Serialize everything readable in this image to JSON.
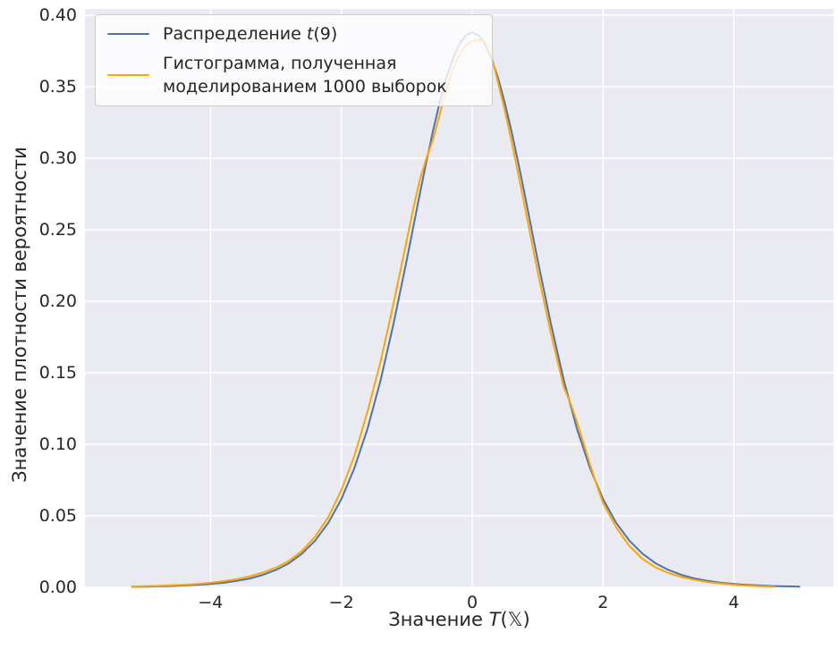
{
  "figure": {
    "background": "#ffffff",
    "plot_background": "#eaeaf2",
    "grid_color": "#ffffff",
    "text_color": "#262626",
    "legend_background": "rgba(255,255,255,0.8)",
    "legend_border": "#cccccc"
  },
  "chart_data": {
    "type": "line",
    "title": "",
    "xlabel_text": "Значение T(𝕏)",
    "xlabel_parts": {
      "prefix": "Значение ",
      "italic": "T",
      "suffix": "(𝕏)"
    },
    "ylabel": "Значение плотности вероятности",
    "x_ticks": [
      -4,
      -2,
      0,
      2,
      4
    ],
    "x_tick_labels": [
      "−4",
      "−2",
      "0",
      "2",
      "4"
    ],
    "y_ticks": [
      0,
      0.05,
      0.1,
      0.15,
      0.2,
      0.25,
      0.3,
      0.35,
      0.4
    ],
    "y_tick_labels": [
      "0.00",
      "0.05",
      "0.10",
      "0.15",
      "0.20",
      "0.25",
      "0.30",
      "0.35",
      "0.40"
    ],
    "xlim": [
      -5.93,
      5.53
    ],
    "ylim": [
      0,
      0.405
    ],
    "grid": true,
    "legend_position": "upper left",
    "series": [
      {
        "name": "Распределение t(9)",
        "label_parts": {
          "prefix": "Распределение ",
          "italic": "t",
          "suffix": "(9)"
        },
        "color": "#4c72b0",
        "peak": 0.388,
        "points": [
          [
            -5.2,
            0.0004
          ],
          [
            -5.0,
            0.0005
          ],
          [
            -4.8,
            0.0007
          ],
          [
            -4.6,
            0.0009
          ],
          [
            -4.4,
            0.0013
          ],
          [
            -4.2,
            0.0017
          ],
          [
            -4.0,
            0.0024
          ],
          [
            -3.8,
            0.0032
          ],
          [
            -3.6,
            0.0045
          ],
          [
            -3.4,
            0.0062
          ],
          [
            -3.2,
            0.0087
          ],
          [
            -3.0,
            0.0121
          ],
          [
            -2.8,
            0.0169
          ],
          [
            -2.6,
            0.0236
          ],
          [
            -2.4,
            0.0327
          ],
          [
            -2.2,
            0.0451
          ],
          [
            -2.0,
            0.0617
          ],
          [
            -1.8,
            0.0834
          ],
          [
            -1.6,
            0.111
          ],
          [
            -1.4,
            0.1448
          ],
          [
            -1.2,
            0.1848
          ],
          [
            -1.0,
            0.2291
          ],
          [
            -0.9,
            0.2522
          ],
          [
            -0.8,
            0.2753
          ],
          [
            -0.7,
            0.2977
          ],
          [
            -0.6,
            0.319
          ],
          [
            -0.5,
            0.3383
          ],
          [
            -0.4,
            0.3553
          ],
          [
            -0.3,
            0.3692
          ],
          [
            -0.2,
            0.3795
          ],
          [
            -0.1,
            0.3859
          ],
          [
            0.0,
            0.388
          ],
          [
            0.1,
            0.3859
          ],
          [
            0.2,
            0.3795
          ],
          [
            0.3,
            0.3692
          ],
          [
            0.4,
            0.3553
          ],
          [
            0.5,
            0.3383
          ],
          [
            0.6,
            0.319
          ],
          [
            0.7,
            0.2977
          ],
          [
            0.8,
            0.2753
          ],
          [
            0.9,
            0.2522
          ],
          [
            1.0,
            0.2291
          ],
          [
            1.2,
            0.1848
          ],
          [
            1.4,
            0.1448
          ],
          [
            1.6,
            0.111
          ],
          [
            1.8,
            0.0834
          ],
          [
            2.0,
            0.0617
          ],
          [
            2.2,
            0.0451
          ],
          [
            2.4,
            0.0327
          ],
          [
            2.6,
            0.0236
          ],
          [
            2.8,
            0.0169
          ],
          [
            3.0,
            0.0121
          ],
          [
            3.2,
            0.0087
          ],
          [
            3.4,
            0.0062
          ],
          [
            3.6,
            0.0045
          ],
          [
            3.8,
            0.0032
          ],
          [
            4.0,
            0.0024
          ],
          [
            4.2,
            0.0017
          ],
          [
            4.4,
            0.0013
          ],
          [
            4.6,
            0.0009
          ],
          [
            4.8,
            0.0007
          ],
          [
            5.0,
            0.0005
          ]
        ]
      },
      {
        "name": "Гистограмма, полученная моделированием 1000 выборок",
        "label_lines": [
          "Гистограмма, полученная",
          "моделированием 1000 выборок"
        ],
        "color": "#ffa500",
        "peak": 0.3825,
        "points": [
          [
            -5.2,
            0.0006
          ],
          [
            -5.0,
            0.0008
          ],
          [
            -4.8,
            0.001
          ],
          [
            -4.6,
            0.0014
          ],
          [
            -4.4,
            0.0018
          ],
          [
            -4.2,
            0.0024
          ],
          [
            -4.0,
            0.0032
          ],
          [
            -3.8,
            0.0043
          ],
          [
            -3.6,
            0.0057
          ],
          [
            -3.4,
            0.0077
          ],
          [
            -3.2,
            0.0103
          ],
          [
            -3.0,
            0.0138
          ],
          [
            -2.8,
            0.0185
          ],
          [
            -2.6,
            0.0255
          ],
          [
            -2.4,
            0.0355
          ],
          [
            -2.2,
            0.049
          ],
          [
            -2.0,
            0.068
          ],
          [
            -1.8,
            0.092
          ],
          [
            -1.6,
            0.123
          ],
          [
            -1.4,
            0.158
          ],
          [
            -1.2,
            0.199
          ],
          [
            -1.0,
            0.243
          ],
          [
            -0.9,
            0.265
          ],
          [
            -0.8,
            0.285
          ],
          [
            -0.7,
            0.3
          ],
          [
            -0.6,
            0.313
          ],
          [
            -0.5,
            0.33
          ],
          [
            -0.4,
            0.347
          ],
          [
            -0.3,
            0.362
          ],
          [
            -0.2,
            0.372
          ],
          [
            -0.1,
            0.379
          ],
          [
            0.0,
            0.382
          ],
          [
            0.1,
            0.3825
          ],
          [
            0.2,
            0.381
          ],
          [
            0.3,
            0.3705
          ],
          [
            0.4,
            0.352
          ],
          [
            0.5,
            0.333
          ],
          [
            0.6,
            0.312
          ],
          [
            0.7,
            0.29
          ],
          [
            0.8,
            0.267
          ],
          [
            0.9,
            0.244
          ],
          [
            1.0,
            0.221
          ],
          [
            1.2,
            0.178
          ],
          [
            1.4,
            0.14
          ],
          [
            1.5,
            0.129
          ],
          [
            1.6,
            0.116
          ],
          [
            1.8,
            0.086
          ],
          [
            1.9,
            0.072
          ],
          [
            2.0,
            0.059
          ],
          [
            2.2,
            0.042
          ],
          [
            2.4,
            0.029
          ],
          [
            2.6,
            0.02
          ],
          [
            2.8,
            0.014
          ],
          [
            3.0,
            0.01
          ],
          [
            3.2,
            0.0072
          ],
          [
            3.4,
            0.0052
          ],
          [
            3.6,
            0.0037
          ],
          [
            3.8,
            0.0026
          ],
          [
            4.0,
            0.0018
          ],
          [
            4.2,
            0.0012
          ],
          [
            4.4,
            0.0008
          ],
          [
            4.6,
            0.0005
          ]
        ]
      }
    ]
  }
}
